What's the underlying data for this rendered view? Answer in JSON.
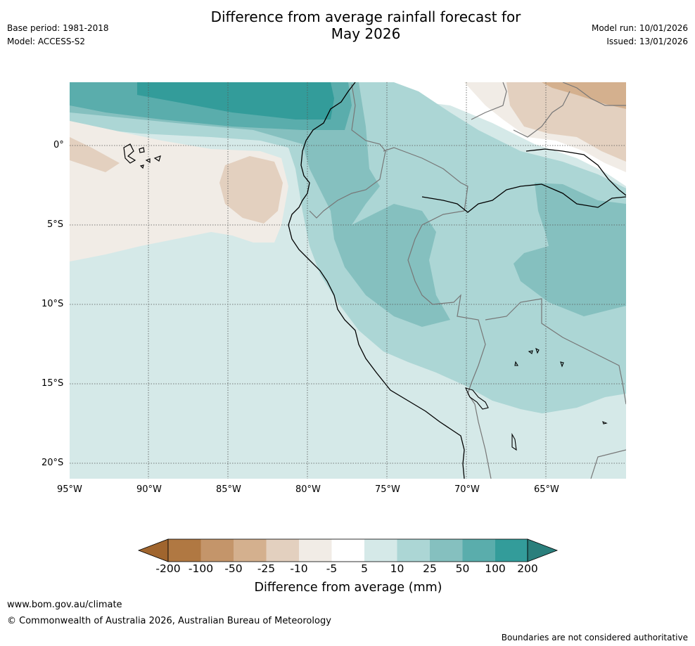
{
  "header": {
    "title_line1": "Difference from average rainfall forecast for",
    "title_line2": "May 2026",
    "base_period": "Base period: 1981-2018",
    "model": "Model: ACCESS-S2",
    "model_run": "Model run: 10/01/2026",
    "issued": "Issued: 13/01/2026"
  },
  "map": {
    "lat_labels": [
      "0°",
      "5°S",
      "10°S",
      "15°S",
      "20°S"
    ],
    "lon_labels": [
      "95°W",
      "90°W",
      "85°W",
      "80°W",
      "75°W",
      "70°W",
      "65°W"
    ],
    "region": "Western South America (Ecuador, Peru, Bolivia, Galapagos)"
  },
  "legend": {
    "ticks": [
      "-200",
      "-100",
      "-50",
      "-25",
      "-10",
      "-5",
      "5",
      "10",
      "25",
      "50",
      "100",
      "200"
    ],
    "colors": [
      "#a0652e",
      "#b07842",
      "#c4956a",
      "#d4b08e",
      "#e3d0bf",
      "#f1ece6",
      "#ffffff",
      "#d5e9e8",
      "#acd6d5",
      "#85c0bf",
      "#5aadac",
      "#339c9a",
      "#2a7f7c"
    ],
    "title": "Difference from average (mm)"
  },
  "footer": {
    "url": "www.bom.gov.au/climate",
    "copyright": "© Commonwealth of Australia 2026, Australian Bureau of Meteorology",
    "disclaimer": "Boundaries are not considered authoritative"
  }
}
